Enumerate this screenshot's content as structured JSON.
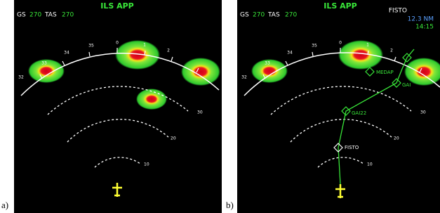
{
  "panel_a": {
    "label": "a)",
    "title": "ILS APP",
    "gs_label": "GS",
    "gs_value": "270",
    "tas_label": "TAS",
    "tas_value": "270",
    "headings": [
      "32",
      "33",
      "34",
      "35",
      "0",
      "1",
      "2"
    ],
    "ranges": [
      "30",
      "20",
      "10"
    ]
  },
  "panel_b": {
    "label": "b)",
    "title": "ILS APP",
    "gs_label": "GS",
    "gs_value": "270",
    "tas_label": "TAS",
    "tas_value": "270",
    "next_waypoint": "FISTO",
    "distance": "12.3 NM",
    "time": "14:15",
    "headings": [
      "32",
      "33",
      "34",
      "35",
      "0",
      "1",
      "2"
    ],
    "ranges": [
      "30",
      "20",
      "10"
    ],
    "waypoints": [
      "MEDAP",
      "GAI",
      "GAI22",
      "FISTO"
    ]
  }
}
